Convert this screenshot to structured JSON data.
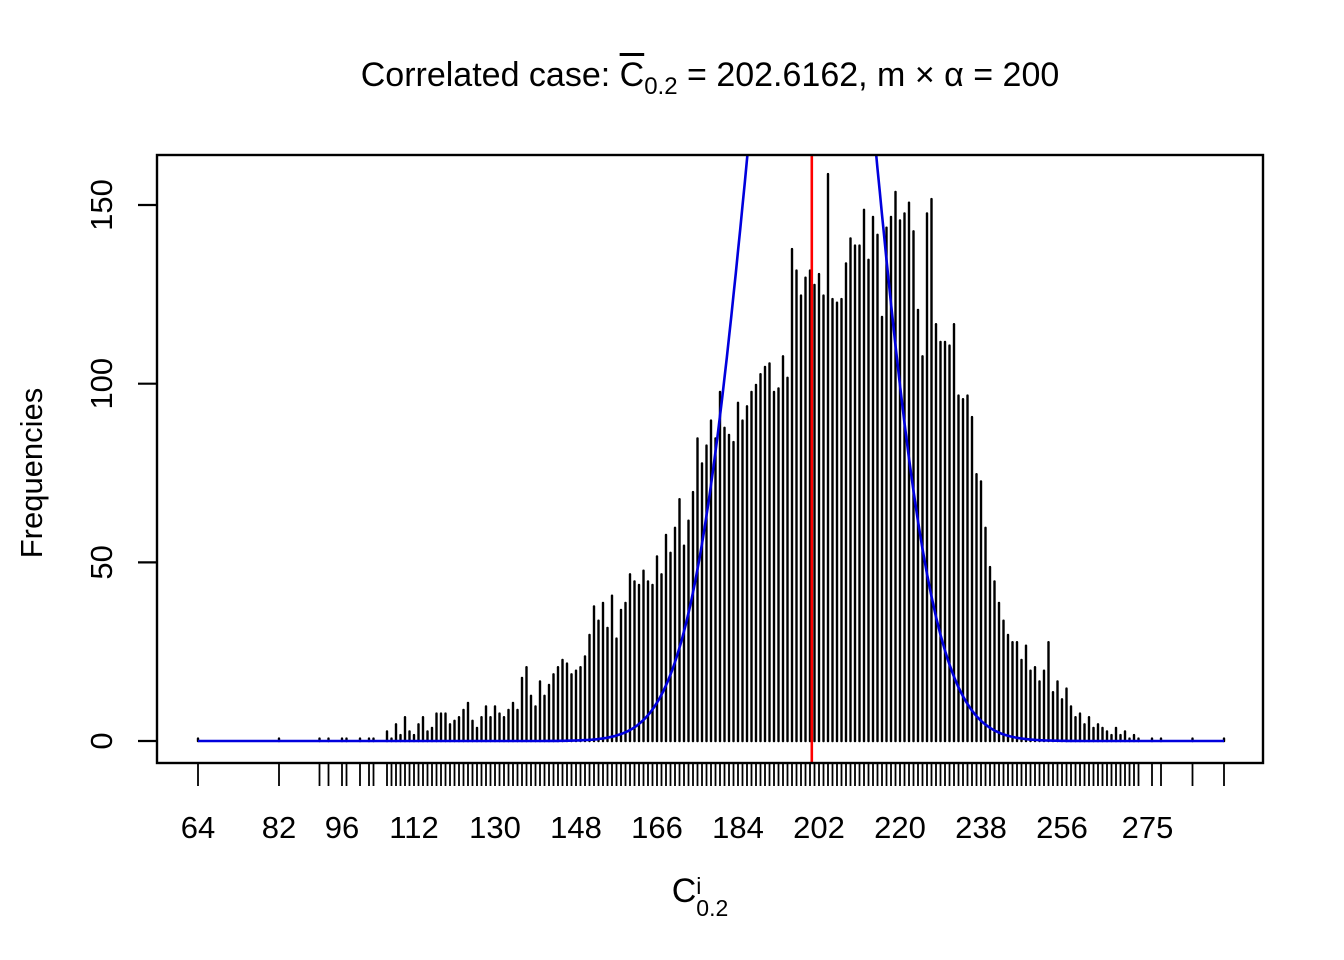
{
  "title": {
    "prefix": "Correlated case: ",
    "c_symbol": "C",
    "c_subscript": "0.2",
    "mean_segment": " = 202.6162, m ",
    "times_symbol": "×",
    "alpha_segment": " α",
    "target_segment": " = 200"
  },
  "x_axis": {
    "label_symbol": "C",
    "label_superscript": "i",
    "label_subscript": "0.2",
    "tick_labels": [
      64,
      82,
      96,
      112,
      130,
      148,
      166,
      184,
      202,
      220,
      238,
      256,
      275
    ]
  },
  "y_axis": {
    "label": "Frequencies",
    "tick_labels": [
      0,
      50,
      100,
      150
    ]
  },
  "colors": {
    "bars": "#000000",
    "curve": "#0000DD",
    "reference_line": "#FF0000",
    "axis": "#000000",
    "background": "#FFFFFF"
  },
  "chart_data": {
    "type": "bar",
    "subtype": "histogram-spikes-with-density-overlay",
    "title": "Correlated case: C̅0.2 = 202.6162, m × α = 200",
    "xlabel": "C^i_0.2",
    "ylabel": "Frequencies",
    "xlim": [
      54.9,
      300.7
    ],
    "ylim": [
      0,
      164
    ],
    "grid": false,
    "x_ticks_labeled": [
      64,
      82,
      96,
      112,
      130,
      148,
      166,
      184,
      202,
      220,
      238,
      256,
      275
    ],
    "y_ticks": [
      0,
      50,
      100,
      150
    ],
    "mean_value": 202.6162,
    "m_times_alpha": 200,
    "reference_line": {
      "x": 200.4,
      "color": "#FF0000"
    },
    "overlay_curve": {
      "type": "gaussian",
      "amplitude": 290,
      "mean": 200.4,
      "sd": 13.4,
      "color": "#0000DD"
    },
    "values": [
      [
        64,
        1
      ],
      [
        82,
        1
      ],
      [
        91,
        1
      ],
      [
        93,
        1
      ],
      [
        96,
        1
      ],
      [
        97,
        1
      ],
      [
        100,
        1
      ],
      [
        102,
        1
      ],
      [
        103,
        1
      ],
      [
        106,
        3
      ],
      [
        107,
        1
      ],
      [
        108,
        5
      ],
      [
        109,
        2
      ],
      [
        110,
        7
      ],
      [
        111,
        3
      ],
      [
        112,
        2
      ],
      [
        113,
        5
      ],
      [
        114,
        7
      ],
      [
        115,
        3
      ],
      [
        116,
        4
      ],
      [
        117,
        8
      ],
      [
        118,
        8
      ],
      [
        119,
        8
      ],
      [
        120,
        5
      ],
      [
        121,
        6
      ],
      [
        122,
        7
      ],
      [
        123,
        9
      ],
      [
        124,
        11
      ],
      [
        125,
        6
      ],
      [
        126,
        4
      ],
      [
        127,
        7
      ],
      [
        128,
        10
      ],
      [
        129,
        7
      ],
      [
        130,
        10
      ],
      [
        131,
        8
      ],
      [
        132,
        7
      ],
      [
        133,
        9
      ],
      [
        134,
        11
      ],
      [
        135,
        9
      ],
      [
        136,
        18
      ],
      [
        137,
        21
      ],
      [
        138,
        13
      ],
      [
        139,
        10
      ],
      [
        140,
        17
      ],
      [
        141,
        13
      ],
      [
        142,
        16
      ],
      [
        143,
        19
      ],
      [
        144,
        21
      ],
      [
        145,
        23
      ],
      [
        146,
        22
      ],
      [
        147,
        19
      ],
      [
        148,
        20
      ],
      [
        149,
        21
      ],
      [
        150,
        24
      ],
      [
        151,
        30
      ],
      [
        152,
        38
      ],
      [
        153,
        34
      ],
      [
        154,
        39
      ],
      [
        155,
        32
      ],
      [
        156,
        41
      ],
      [
        157,
        29
      ],
      [
        158,
        37
      ],
      [
        159,
        39
      ],
      [
        160,
        47
      ],
      [
        161,
        45
      ],
      [
        162,
        44
      ],
      [
        163,
        48
      ],
      [
        164,
        45
      ],
      [
        165,
        44
      ],
      [
        166,
        52
      ],
      [
        167,
        47
      ],
      [
        168,
        58
      ],
      [
        169,
        53
      ],
      [
        170,
        60
      ],
      [
        171,
        68
      ],
      [
        172,
        55
      ],
      [
        173,
        62
      ],
      [
        174,
        70
      ],
      [
        175,
        85
      ],
      [
        176,
        78
      ],
      [
        177,
        83
      ],
      [
        178,
        90
      ],
      [
        179,
        85
      ],
      [
        180,
        98
      ],
      [
        181,
        88
      ],
      [
        182,
        86
      ],
      [
        183,
        84
      ],
      [
        184,
        95
      ],
      [
        185,
        90
      ],
      [
        186,
        94
      ],
      [
        187,
        98
      ],
      [
        188,
        100
      ],
      [
        189,
        103
      ],
      [
        190,
        105
      ],
      [
        191,
        106
      ],
      [
        192,
        98
      ],
      [
        193,
        99
      ],
      [
        194,
        108
      ],
      [
        195,
        102
      ],
      [
        196,
        138
      ],
      [
        197,
        132
      ],
      [
        198,
        125
      ],
      [
        199,
        130
      ],
      [
        200,
        132
      ],
      [
        201,
        128
      ],
      [
        202,
        131
      ],
      [
        203,
        125
      ],
      [
        204,
        159
      ],
      [
        205,
        124
      ],
      [
        206,
        123
      ],
      [
        207,
        124
      ],
      [
        208,
        134
      ],
      [
        209,
        141
      ],
      [
        210,
        139
      ],
      [
        211,
        139
      ],
      [
        212,
        149
      ],
      [
        213,
        135
      ],
      [
        214,
        147
      ],
      [
        215,
        142
      ],
      [
        216,
        119
      ],
      [
        217,
        144
      ],
      [
        218,
        147
      ],
      [
        219,
        154
      ],
      [
        220,
        146
      ],
      [
        221,
        148
      ],
      [
        222,
        151
      ],
      [
        223,
        143
      ],
      [
        224,
        121
      ],
      [
        225,
        108
      ],
      [
        226,
        148
      ],
      [
        227,
        152
      ],
      [
        228,
        117
      ],
      [
        229,
        112
      ],
      [
        230,
        112
      ],
      [
        231,
        111
      ],
      [
        232,
        117
      ],
      [
        233,
        97
      ],
      [
        234,
        96
      ],
      [
        235,
        97
      ],
      [
        236,
        91
      ],
      [
        237,
        75
      ],
      [
        238,
        73
      ],
      [
        239,
        60
      ],
      [
        240,
        49
      ],
      [
        241,
        45
      ],
      [
        242,
        39
      ],
      [
        243,
        34
      ],
      [
        244,
        30
      ],
      [
        245,
        28
      ],
      [
        246,
        28
      ],
      [
        247,
        23
      ],
      [
        248,
        27
      ],
      [
        249,
        20
      ],
      [
        250,
        21
      ],
      [
        251,
        17
      ],
      [
        252,
        20
      ],
      [
        253,
        28
      ],
      [
        254,
        14
      ],
      [
        255,
        17
      ],
      [
        256,
        12
      ],
      [
        257,
        15
      ],
      [
        258,
        10
      ],
      [
        259,
        7
      ],
      [
        260,
        8
      ],
      [
        261,
        5
      ],
      [
        262,
        7
      ],
      [
        263,
        4
      ],
      [
        264,
        5
      ],
      [
        265,
        4
      ],
      [
        266,
        3
      ],
      [
        267,
        2
      ],
      [
        268,
        4
      ],
      [
        269,
        2
      ],
      [
        270,
        3
      ],
      [
        271,
        1
      ],
      [
        272,
        2
      ],
      [
        273,
        1
      ],
      [
        276,
        1
      ],
      [
        278,
        1
      ],
      [
        285,
        1
      ],
      [
        292,
        1
      ]
    ]
  }
}
